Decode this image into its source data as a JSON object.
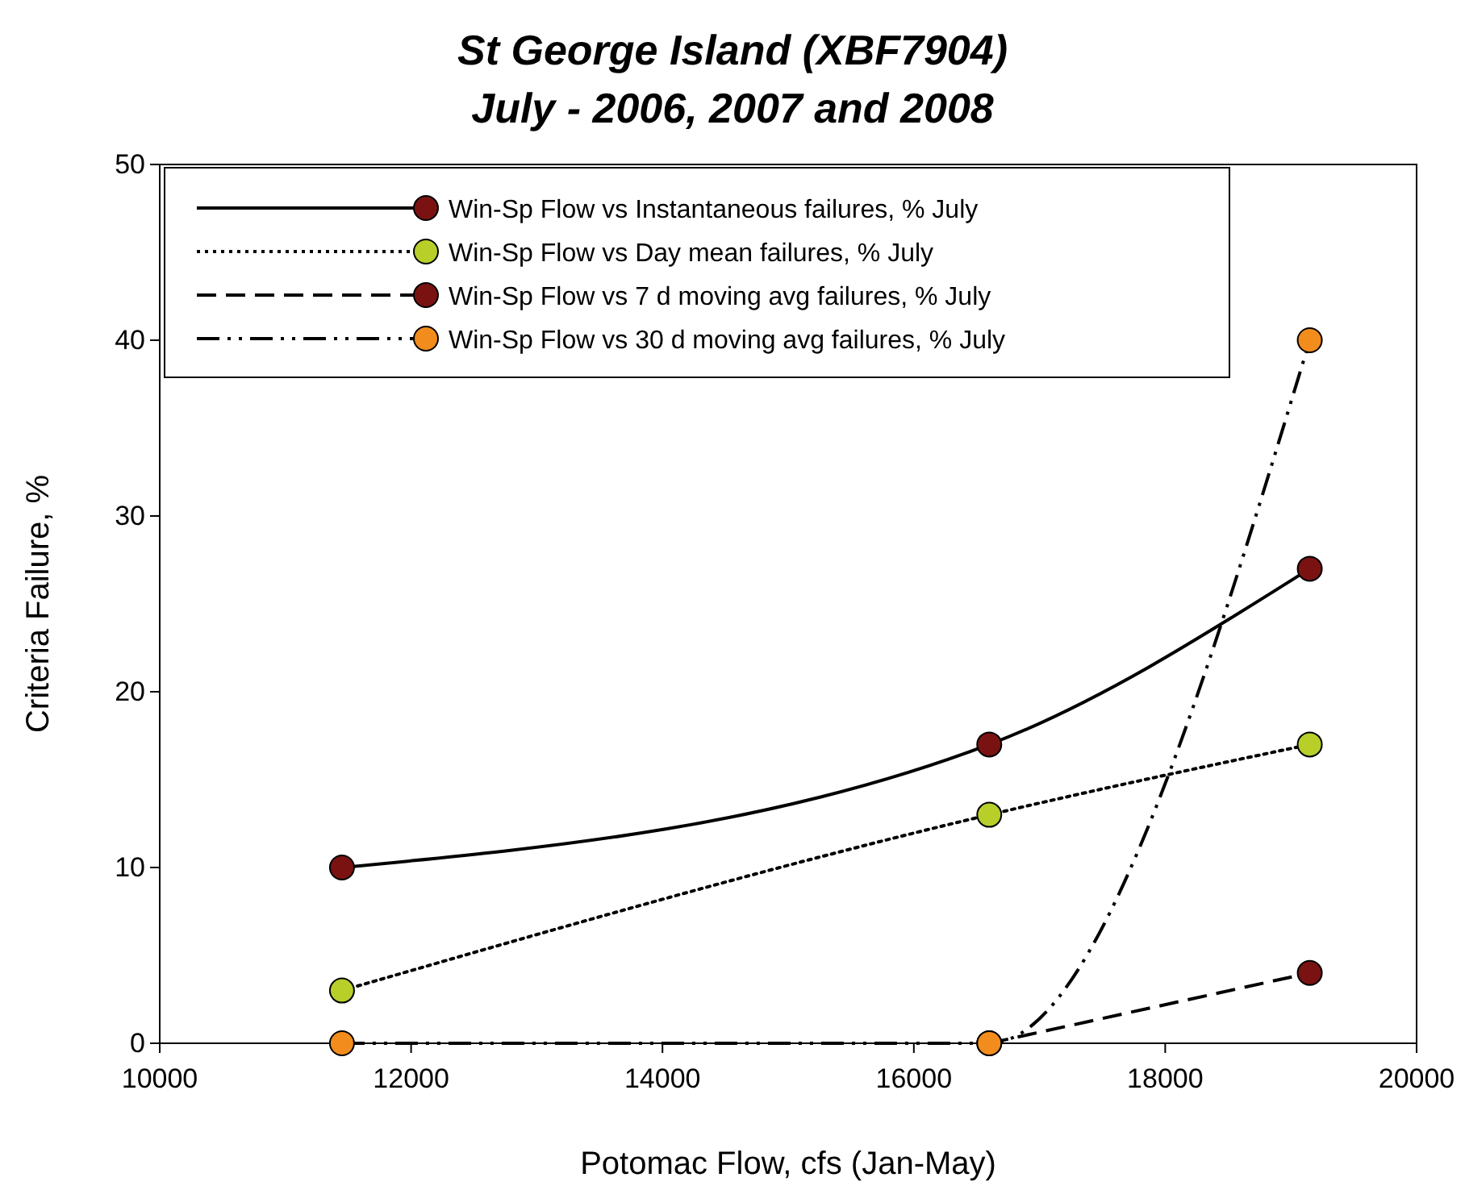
{
  "chart_data": {
    "type": "line",
    "title": "St George Island (XBF7904)",
    "subtitle": "July - 2006, 2007 and 2008",
    "xlabel": "Potomac Flow, cfs (Jan-May)",
    "ylabel": "Criteria Failure, %",
    "x": [
      11450,
      16600,
      19150
    ],
    "series": [
      {
        "name": "Win-Sp Flow vs Instantaneous failures, % July",
        "color": "#7a1212",
        "values": [
          10,
          17,
          27
        ],
        "line_style": "solid"
      },
      {
        "name": "Win-Sp Flow vs Day mean failures, % July",
        "color": "#b8cf2a",
        "values": [
          3,
          13,
          17
        ],
        "line_style": "dotted"
      },
      {
        "name": "Win-Sp Flow vs 7 d moving avg failures, % July",
        "color": "#7a1212",
        "values": [
          null,
          0,
          4
        ],
        "line_style": "dashed"
      },
      {
        "name": "Win-Sp Flow vs 30 d moving avg failures, % July",
        "color": "#f28c1c",
        "values": [
          0,
          0,
          40
        ],
        "line_style": "dashdot"
      }
    ],
    "xlim": [
      10000,
      20000
    ],
    "xticks": [
      10000,
      12000,
      14000,
      16000,
      18000,
      20000
    ],
    "ylim": [
      0,
      50
    ],
    "yticks": [
      0,
      10,
      20,
      30,
      40,
      50
    ],
    "grid": false,
    "legend": "top left",
    "marker": "circle"
  }
}
